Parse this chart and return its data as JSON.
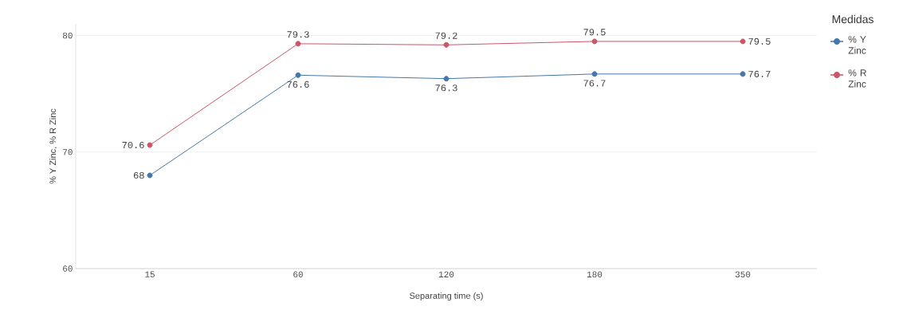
{
  "chart_data": {
    "type": "line",
    "xlabel": "Separating time (s)",
    "ylabel": "% Y Zinc, % R Zinc",
    "legend_title": "Medidas",
    "categories": [
      "15",
      "60",
      "120",
      "180",
      "350"
    ],
    "series": [
      {
        "name": "% Y Zinc",
        "color": "#4477aa",
        "values": [
          68,
          76.6,
          76.3,
          76.7,
          76.7
        ]
      },
      {
        "name": "% R Zinc",
        "color": "#cc5566",
        "values": [
          70.6,
          79.3,
          79.2,
          79.5,
          79.5
        ]
      }
    ],
    "ylim": [
      60,
      81
    ],
    "yticks": [
      60,
      70,
      80
    ],
    "grid": "y",
    "legend": "right",
    "marker": "circle",
    "line_style": "solid",
    "data_labels": true
  }
}
